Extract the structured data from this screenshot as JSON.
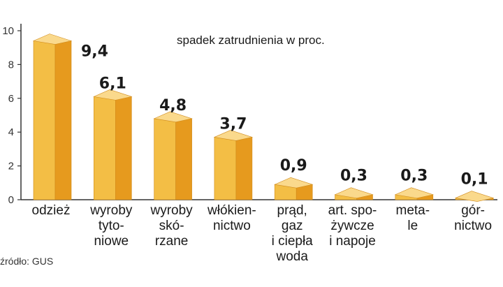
{
  "chart_data": {
    "type": "bar",
    "subtitle": "spadek zatrudnienia w proc.",
    "categories": [
      [
        "odzież"
      ],
      [
        "wyroby",
        "tyto-",
        "niowe"
      ],
      [
        "wyroby",
        "skó-",
        "rzane"
      ],
      [
        "włókien-",
        "nictwo"
      ],
      [
        "prąd,",
        "gaz",
        "i ciepła",
        "woda"
      ],
      [
        "art. spo-",
        "żywcze",
        "i napoje"
      ],
      [
        "meta-",
        "le"
      ],
      [
        "gór-",
        "nictwo"
      ]
    ],
    "values": [
      9.4,
      6.1,
      4.8,
      3.7,
      0.9,
      0.3,
      0.3,
      0.1
    ],
    "value_labels": [
      "9,4",
      "6,1",
      "4,8",
      "3,7",
      "0,9",
      "0,3",
      "0,3",
      "0,1"
    ],
    "y_ticks": [
      0,
      2,
      4,
      6,
      8,
      10
    ],
    "ylim": [
      0,
      10
    ],
    "grid": false,
    "source": "źródło: GUS",
    "colors": {
      "bar_front": "#F3BE45",
      "bar_side": "#E69A1E",
      "bar_top": "#FAD98C",
      "bar_edge": "#D08A1A",
      "axis": "#333333"
    }
  }
}
